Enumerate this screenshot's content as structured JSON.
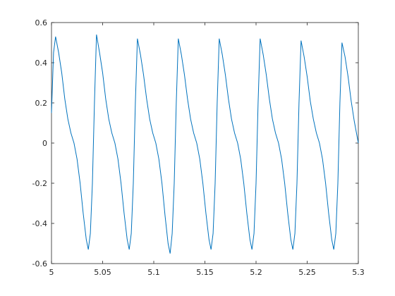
{
  "chart_data": {
    "type": "line",
    "x": [
      5.0,
      5.002,
      5.004,
      5.007,
      5.01,
      5.013,
      5.016,
      5.019,
      5.022,
      5.025,
      5.028,
      5.031,
      5.034,
      5.036,
      5.038,
      5.04,
      5.042,
      5.044,
      5.047,
      5.05,
      5.053,
      5.056,
      5.059,
      5.062,
      5.065,
      5.068,
      5.071,
      5.074,
      5.076,
      5.078,
      5.08,
      5.082,
      5.084,
      5.087,
      5.09,
      5.093,
      5.096,
      5.099,
      5.102,
      5.105,
      5.108,
      5.111,
      5.114,
      5.116,
      5.118,
      5.12,
      5.122,
      5.124,
      5.127,
      5.13,
      5.133,
      5.136,
      5.139,
      5.142,
      5.145,
      5.148,
      5.151,
      5.154,
      5.156,
      5.158,
      5.16,
      5.162,
      5.164,
      5.167,
      5.17,
      5.173,
      5.176,
      5.179,
      5.182,
      5.185,
      5.188,
      5.191,
      5.194,
      5.196,
      5.198,
      5.2,
      5.202,
      5.204,
      5.207,
      5.21,
      5.213,
      5.216,
      5.219,
      5.222,
      5.225,
      5.228,
      5.231,
      5.234,
      5.236,
      5.238,
      5.24,
      5.242,
      5.244,
      5.247,
      5.25,
      5.253,
      5.256,
      5.259,
      5.262,
      5.265,
      5.268,
      5.271,
      5.274,
      5.276,
      5.278,
      5.28,
      5.282,
      5.284,
      5.287,
      5.29,
      5.293,
      5.296,
      5.3
    ],
    "series": [
      {
        "color": "#0072bd",
        "values": [
          0.15,
          0.45,
          0.53,
          0.45,
          0.35,
          0.22,
          0.12,
          0.05,
          0.0,
          -0.08,
          -0.2,
          -0.35,
          -0.48,
          -0.53,
          -0.45,
          -0.2,
          0.2,
          0.54,
          0.45,
          0.35,
          0.22,
          0.12,
          0.05,
          0.0,
          -0.08,
          -0.2,
          -0.35,
          -0.48,
          -0.53,
          -0.45,
          -0.2,
          0.2,
          0.52,
          0.44,
          0.34,
          0.22,
          0.12,
          0.05,
          0.0,
          -0.08,
          -0.2,
          -0.36,
          -0.5,
          -0.55,
          -0.45,
          -0.2,
          0.2,
          0.52,
          0.44,
          0.34,
          0.22,
          0.12,
          0.05,
          0.0,
          -0.08,
          -0.2,
          -0.35,
          -0.48,
          -0.53,
          -0.45,
          -0.2,
          0.2,
          0.52,
          0.44,
          0.34,
          0.22,
          0.12,
          0.05,
          0.0,
          -0.08,
          -0.2,
          -0.35,
          -0.48,
          -0.53,
          -0.45,
          -0.2,
          0.2,
          0.52,
          0.44,
          0.34,
          0.22,
          0.12,
          0.05,
          0.0,
          -0.08,
          -0.2,
          -0.35,
          -0.48,
          -0.53,
          -0.45,
          -0.2,
          0.2,
          0.51,
          0.43,
          0.33,
          0.21,
          0.12,
          0.05,
          0.0,
          -0.08,
          -0.2,
          -0.35,
          -0.48,
          -0.53,
          -0.45,
          -0.2,
          0.2,
          0.5,
          0.43,
          0.33,
          0.21,
          0.11,
          0.0
        ]
      }
    ],
    "xlim": [
      5,
      5.3
    ],
    "xticks": [
      5,
      5.05,
      5.1,
      5.15,
      5.2,
      5.25,
      5.3
    ],
    "ylim": [
      -0.6,
      0.6
    ],
    "yticks": [
      -0.6,
      -0.4,
      -0.2,
      0,
      0.2,
      0.4,
      0.6
    ]
  }
}
